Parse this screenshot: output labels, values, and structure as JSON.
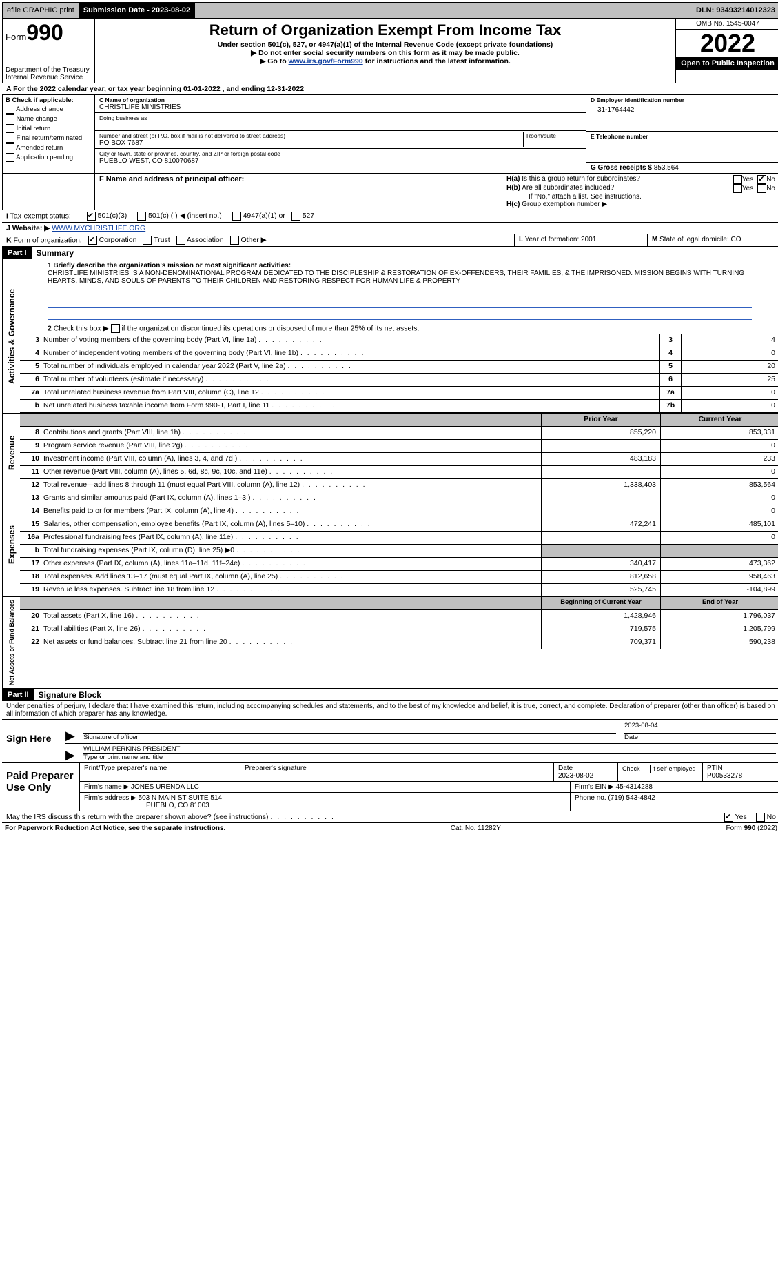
{
  "top": {
    "efile": "efile GRAPHIC print",
    "submission_label": "Submission Date - 2023-08-02",
    "dln_label": "DLN: 93493214012323"
  },
  "header": {
    "form_word": "Form",
    "form_num": "990",
    "dept1": "Department of the Treasury",
    "dept2": "Internal Revenue Service",
    "title": "Return of Organization Exempt From Income Tax",
    "sub1": "Under section 501(c), 527, or 4947(a)(1) of the Internal Revenue Code (except private foundations)",
    "sub2": "Do not enter social security numbers on this form as it may be made public.",
    "sub3": "Go to www.irs.gov/Form990 for instructions and the latest information.",
    "omb": "OMB No. 1545-0047",
    "year": "2022",
    "open": "Open to Public Inspection"
  },
  "A": {
    "line": "A For the 2022 calendar year, or tax year beginning 01-01-2022   , and ending 12-31-2022"
  },
  "B": {
    "hdr": "B Check if applicable:",
    "addr": "Address change",
    "name": "Name change",
    "init": "Initial return",
    "final": "Final return/terminated",
    "amend": "Amended return",
    "app": "Application pending"
  },
  "C": {
    "name_lbl": "C Name of organization",
    "name": "CHRISTLIFE MINISTRIES",
    "dba_lbl": "Doing business as",
    "addr_lbl": "Number and street (or P.O. box if mail is not delivered to street address)",
    "room_lbl": "Room/suite",
    "addr": "PO BOX 7687",
    "city_lbl": "City or town, state or province, country, and ZIP or foreign postal code",
    "city": "PUEBLO WEST, CO  810070687"
  },
  "D": {
    "lbl": "D Employer identification number",
    "val": "31-1764442"
  },
  "E": {
    "lbl": "E Telephone number",
    "val": ""
  },
  "G": {
    "lbl": "G Gross receipts $",
    "val": "853,564"
  },
  "F": {
    "lbl": "F  Name and address of principal officer:"
  },
  "H": {
    "a_lbl": "H(a)  Is this a group return for subordinates?",
    "b_lbl": "H(b)  Are all subordinates included?",
    "b_note": "If \"No,\" attach a list. See instructions.",
    "c_lbl": "H(c)  Group exemption number ▶",
    "yes": "Yes",
    "no": "No"
  },
  "I": {
    "lbl": "I    Tax-exempt status:",
    "c3": "501(c)(3)",
    "c": "501(c) (   ) ◀ (insert no.)",
    "a1": "4947(a)(1) or",
    "s527": "527"
  },
  "J": {
    "lbl": "J    Website: ▶",
    "val": "WWW.MYCHRISTLIFE.ORG"
  },
  "K": {
    "lbl": "K Form of organization:",
    "corp": "Corporation",
    "trust": "Trust",
    "assoc": "Association",
    "other": "Other ▶"
  },
  "L": {
    "lbl": "L Year of formation: 2001"
  },
  "M": {
    "lbl": "M State of legal domicile: CO"
  },
  "part1": {
    "hdr": "Part I",
    "title": "Summary",
    "l1_lbl": "1  Briefly describe the organization's mission or most significant activities:",
    "mission": "CHRISTLIFE MINISTRIES IS A NON-DENOMINATIONAL PROGRAM DEDICATED TO THE DISCIPLESHIP & RESTORATION OF EX-OFFENDERS, THEIR FAMILIES, & THE IMPRISONED. MISSION BEGINS WITH TURNING HEARTS, MINDS, AND SOULS OF PARENTS TO THEIR CHILDREN AND RESTORING RESPECT FOR HUMAN LIFE & PROPERTY",
    "l2": "Check this box ▶  if the organization discontinued its operations or disposed of more than 25% of its net assets.",
    "rows_a": [
      {
        "n": "3",
        "d": "Number of voting members of the governing body (Part VI, line 1a)",
        "box": "3",
        "v": "4"
      },
      {
        "n": "4",
        "d": "Number of independent voting members of the governing body (Part VI, line 1b)",
        "box": "4",
        "v": "0"
      },
      {
        "n": "5",
        "d": "Total number of individuals employed in calendar year 2022 (Part V, line 2a)",
        "box": "5",
        "v": "20"
      },
      {
        "n": "6",
        "d": "Total number of volunteers (estimate if necessary)",
        "box": "6",
        "v": "25"
      },
      {
        "n": "7a",
        "d": "Total unrelated business revenue from Part VIII, column (C), line 12",
        "box": "7a",
        "v": "0"
      },
      {
        "n": "b",
        "d": "Net unrelated business taxable income from Form 990-T, Part I, line 11",
        "box": "7b",
        "v": "0"
      }
    ],
    "col_prior": "Prior Year",
    "col_curr": "Current Year",
    "rev": [
      {
        "n": "8",
        "d": "Contributions and grants (Part VIII, line 1h)",
        "p": "855,220",
        "c": "853,331"
      },
      {
        "n": "9",
        "d": "Program service revenue (Part VIII, line 2g)",
        "p": "",
        "c": "0"
      },
      {
        "n": "10",
        "d": "Investment income (Part VIII, column (A), lines 3, 4, and 7d )",
        "p": "483,183",
        "c": "233"
      },
      {
        "n": "11",
        "d": "Other revenue (Part VIII, column (A), lines 5, 6d, 8c, 9c, 10c, and 11e)",
        "p": "",
        "c": "0"
      },
      {
        "n": "12",
        "d": "Total revenue—add lines 8 through 11 (must equal Part VIII, column (A), line 12)",
        "p": "1,338,403",
        "c": "853,564"
      }
    ],
    "exp": [
      {
        "n": "13",
        "d": "Grants and similar amounts paid (Part IX, column (A), lines 1–3 )",
        "p": "",
        "c": "0"
      },
      {
        "n": "14",
        "d": "Benefits paid to or for members (Part IX, column (A), line 4)",
        "p": "",
        "c": "0"
      },
      {
        "n": "15",
        "d": "Salaries, other compensation, employee benefits (Part IX, column (A), lines 5–10)",
        "p": "472,241",
        "c": "485,101"
      },
      {
        "n": "16a",
        "d": "Professional fundraising fees (Part IX, column (A), line 11e)",
        "p": "",
        "c": "0"
      },
      {
        "n": "b",
        "d": "Total fundraising expenses (Part IX, column (D), line 25) ▶0",
        "p": "SHADE",
        "c": "SHADE"
      },
      {
        "n": "17",
        "d": "Other expenses (Part IX, column (A), lines 11a–11d, 11f–24e)",
        "p": "340,417",
        "c": "473,362"
      },
      {
        "n": "18",
        "d": "Total expenses. Add lines 13–17 (must equal Part IX, column (A), line 25)",
        "p": "812,658",
        "c": "958,463"
      },
      {
        "n": "19",
        "d": "Revenue less expenses. Subtract line 18 from line 12",
        "p": "525,745",
        "c": "-104,899"
      }
    ],
    "col_beg": "Beginning of Current Year",
    "col_end": "End of Year",
    "net": [
      {
        "n": "20",
        "d": "Total assets (Part X, line 16)",
        "p": "1,428,946",
        "c": "1,796,037"
      },
      {
        "n": "21",
        "d": "Total liabilities (Part X, line 26)",
        "p": "719,575",
        "c": "1,205,799"
      },
      {
        "n": "22",
        "d": "Net assets or fund balances. Subtract line 21 from line 20",
        "p": "709,371",
        "c": "590,238"
      }
    ],
    "side_act": "Activities & Governance",
    "side_rev": "Revenue",
    "side_exp": "Expenses",
    "side_net": "Net Assets or Fund Balances"
  },
  "part2": {
    "hdr": "Part II",
    "title": "Signature Block",
    "pen": "Under penalties of perjury, I declare that I have examined this return, including accompanying schedules and statements, and to the best of my knowledge and belief, it is true, correct, and complete. Declaration of preparer (other than officer) is based on all information of which preparer has any knowledge.",
    "sign_here": "Sign Here",
    "sig_off": "Signature of officer",
    "date": "Date",
    "date_val": "2023-08-04",
    "name_title": "WILLIAM PERKINS  PRESIDENT",
    "type_name": "Type or print name and title",
    "paid": "Paid Preparer Use Only",
    "prep_name_lbl": "Print/Type preparer's name",
    "prep_sig_lbl": "Preparer's signature",
    "prep_date_lbl": "Date",
    "prep_date": "2023-08-02",
    "self_lbl": "Check        if self-employed",
    "ptin_lbl": "PTIN",
    "ptin": "P00533278",
    "firm_name_lbl": "Firm's name    ▶",
    "firm_name": "JONES URENDA LLC",
    "firm_ein_lbl": "Firm's EIN ▶",
    "firm_ein": "45-4314288",
    "firm_addr_lbl": "Firm's address ▶",
    "firm_addr1": "503 N MAIN ST SUITE 514",
    "firm_addr2": "PUEBLO, CO  81003",
    "phone_lbl": "Phone no.",
    "phone": "(719) 543-4842",
    "discuss": "May the IRS discuss this return with the preparer shown above? (see instructions)",
    "yes": "Yes",
    "no": "No"
  },
  "footer": {
    "pra": "For Paperwork Reduction Act Notice, see the separate instructions.",
    "cat": "Cat. No. 11282Y",
    "form": "Form 990 (2022)"
  }
}
